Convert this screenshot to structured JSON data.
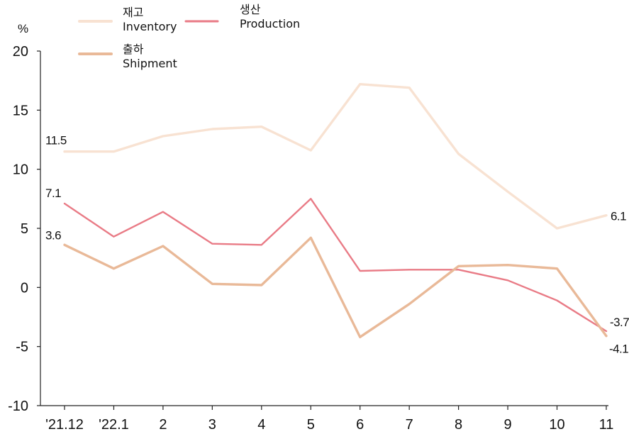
{
  "chart_data": {
    "type": "line",
    "title": "",
    "xlabel": "",
    "ylabel": "%",
    "ylim": [
      -10,
      20
    ],
    "yticks": [
      20,
      15,
      10,
      5,
      0,
      -5,
      -10
    ],
    "categories": [
      "'21.12",
      "'22.1",
      "2",
      "3",
      "4",
      "5",
      "6",
      "7",
      "8",
      "9",
      "10",
      "11"
    ],
    "grid": false,
    "legend_position": "top-left",
    "series": [
      {
        "name_ko": "재고",
        "name_en": "Inventory",
        "color": "#f8e2d2",
        "values": [
          11.5,
          11.5,
          12.8,
          13.4,
          13.6,
          11.6,
          17.2,
          16.9,
          11.3,
          8.1,
          5.0,
          6.1
        ]
      },
      {
        "name_ko": "생산",
        "name_en": "Production",
        "color": "#e97b86",
        "values": [
          7.1,
          4.3,
          6.4,
          3.7,
          3.6,
          7.5,
          1.4,
          1.5,
          1.5,
          0.6,
          -1.1,
          -3.7
        ]
      },
      {
        "name_ko": "출하",
        "name_en": "Shipment",
        "color": "#e9b998",
        "values": [
          3.6,
          1.6,
          3.5,
          0.3,
          0.2,
          4.2,
          -4.2,
          -1.4,
          1.8,
          1.9,
          1.6,
          -4.1
        ]
      }
    ],
    "annotations": [
      {
        "series": 0,
        "index": 0,
        "text": "11.5"
      },
      {
        "series": 1,
        "index": 0,
        "text": "7.1"
      },
      {
        "series": 2,
        "index": 0,
        "text": "3.6"
      },
      {
        "series": 0,
        "index": 11,
        "text": "6.1"
      },
      {
        "series": 1,
        "index": 11,
        "text": "-3.7"
      },
      {
        "series": 2,
        "index": 11,
        "text": "-4.1"
      }
    ]
  }
}
